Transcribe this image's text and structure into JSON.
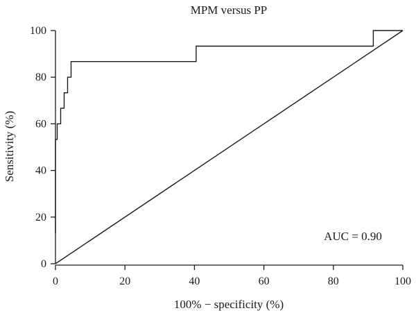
{
  "chart_data": {
    "type": "line",
    "title": "MPM versus PP",
    "xlabel": "100% − specificity (%)",
    "ylabel": "Sensitivity (%)",
    "xlim": [
      0,
      100
    ],
    "ylim": [
      0,
      100
    ],
    "x_ticks": [
      0,
      20,
      40,
      60,
      80,
      100
    ],
    "y_ticks": [
      0,
      20,
      40,
      60,
      80,
      100
    ],
    "grid": false,
    "annotation": "AUC = 0.90",
    "series": [
      {
        "style": "step",
        "x": [
          0,
          0,
          0.5,
          0.5,
          1.5,
          1.5,
          2.5,
          2.5,
          3.5,
          3.5,
          4.5,
          4.5,
          6,
          6,
          40.5,
          40.5,
          91.5,
          91.5,
          100
        ],
        "y": [
          13,
          53.3,
          53.3,
          60,
          60,
          66.7,
          66.7,
          73.3,
          73.3,
          80,
          80,
          86.7,
          86.7,
          86.7,
          86.7,
          93.3,
          93.3,
          100,
          100
        ]
      },
      {
        "style": "reference",
        "x": [
          0,
          100
        ],
        "y": [
          0,
          100
        ]
      }
    ]
  }
}
